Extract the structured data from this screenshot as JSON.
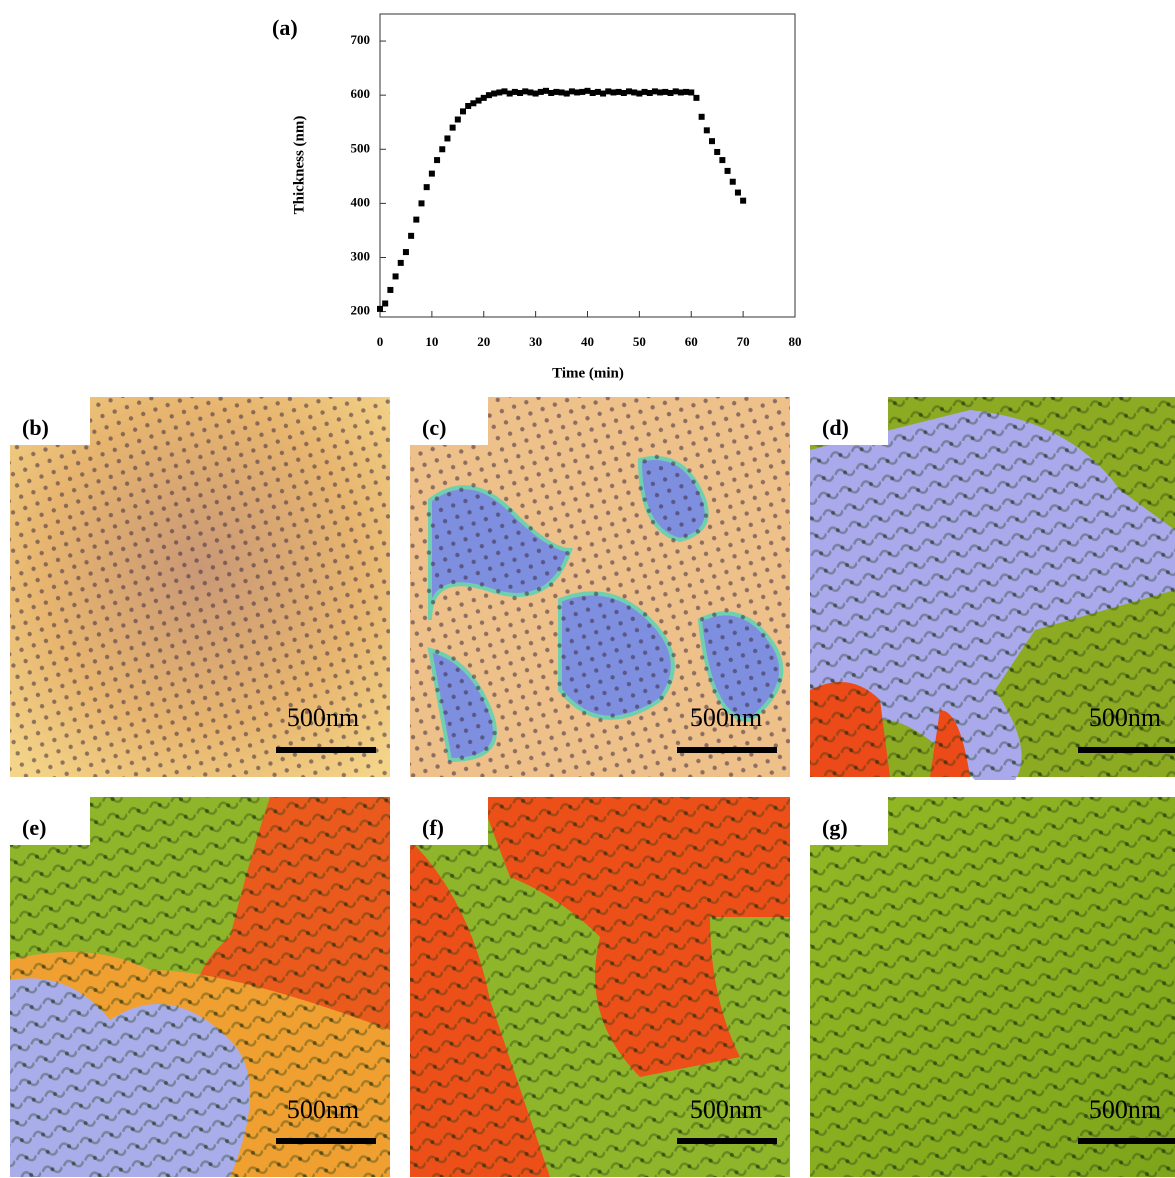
{
  "chart_data": {
    "type": "scatter",
    "label": "(a)",
    "x_label": "Time (min)",
    "y_label": "Thickness (nm)",
    "x": [
      0,
      1,
      2,
      3,
      4,
      5,
      6,
      7,
      8,
      9,
      10,
      11,
      12,
      13,
      14,
      15,
      16,
      17,
      18,
      19,
      20,
      21,
      22,
      23,
      24,
      25,
      26,
      27,
      28,
      29,
      30,
      31,
      32,
      33,
      34,
      35,
      36,
      37,
      38,
      39,
      40,
      41,
      42,
      43,
      44,
      45,
      46,
      47,
      48,
      49,
      50,
      51,
      52,
      53,
      54,
      55,
      56,
      57,
      58,
      59,
      60,
      61,
      62,
      63,
      64,
      65,
      66,
      67,
      68,
      69,
      70
    ],
    "values": [
      205,
      215,
      240,
      265,
      290,
      310,
      340,
      370,
      400,
      430,
      455,
      480,
      500,
      520,
      540,
      555,
      570,
      580,
      585,
      590,
      595,
      600,
      603,
      605,
      607,
      603,
      606,
      604,
      607,
      605,
      603,
      606,
      608,
      604,
      606,
      605,
      603,
      607,
      605,
      606,
      608,
      604,
      606,
      603,
      607,
      605,
      606,
      604,
      607,
      605,
      603,
      606,
      604,
      607,
      605,
      606,
      604,
      607,
      605,
      606,
      605,
      595,
      560,
      535,
      515,
      495,
      480,
      460,
      440,
      420,
      405
    ],
    "color": "#000000",
    "xlim": [
      0,
      80
    ],
    "xticks": [
      0,
      10,
      20,
      30,
      40,
      50,
      60,
      70,
      80
    ],
    "ylim": [
      190,
      750
    ],
    "yticks": [
      200,
      300,
      400,
      500,
      600,
      700
    ]
  },
  "panels": [
    {
      "label": "(b)",
      "scale_bar": "500nm"
    },
    {
      "label": "(c)",
      "scale_bar": "500nm"
    },
    {
      "label": "(d)",
      "scale_bar": "500nm"
    },
    {
      "label": "(e)",
      "scale_bar": "500nm"
    },
    {
      "label": "(f)",
      "scale_bar": "500nm"
    },
    {
      "label": "(g)",
      "scale_bar": "500nm"
    }
  ]
}
